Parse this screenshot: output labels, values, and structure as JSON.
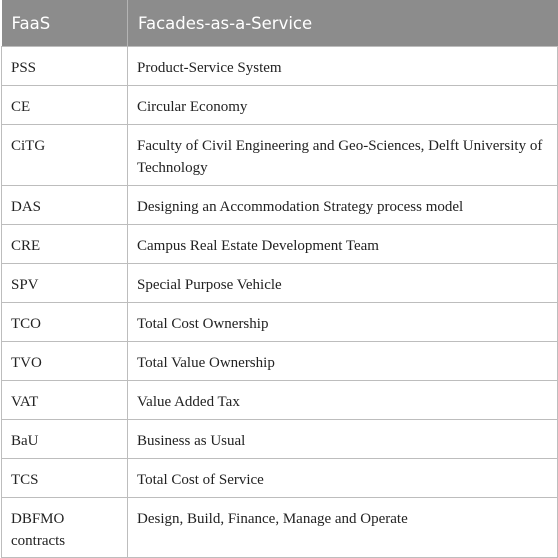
{
  "table": {
    "header": [
      "FaaS",
      "Facades-as-a-Service"
    ],
    "rows": [
      [
        "PSS",
        "Product-Service System"
      ],
      [
        "CE",
        "Circular Economy"
      ],
      [
        "CiTG",
        "Faculty of Civil Engineering and Geo-Sciences, Delft University of Technology"
      ],
      [
        "DAS",
        "Designing an Accommodation Strategy process model"
      ],
      [
        "CRE",
        "Campus Real Estate Development Team"
      ],
      [
        "SPV",
        "Special Purpose Vehicle"
      ],
      [
        "TCO",
        "Total Cost Ownership"
      ],
      [
        "TVO",
        "Total Value Ownership"
      ],
      [
        "VAT",
        "Value Added Tax"
      ],
      [
        "BaU",
        "Business as Usual"
      ],
      [
        "TCS",
        "Total Cost of Service"
      ],
      [
        "DBFMO contracts",
        "Design, Build, Finance, Manage and Operate"
      ]
    ]
  }
}
